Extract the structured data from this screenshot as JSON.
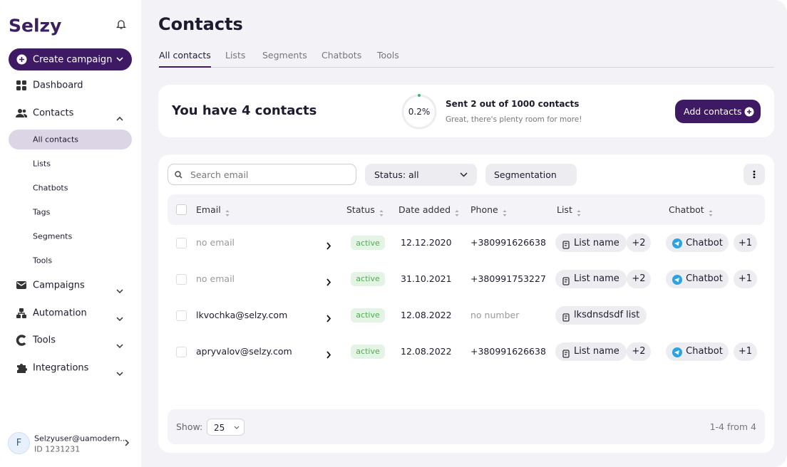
{
  "sidebar": {
    "logo": "Selzy",
    "create": "Create campaign",
    "nav": [
      {
        "label": "Dashboard",
        "icon": "grid"
      },
      {
        "label": "Contacts",
        "icon": "people",
        "open": true,
        "sub": [
          "All contacts",
          "Lists",
          "Chatbots",
          "Tags",
          "Segments",
          "Tools"
        ],
        "active": 0
      },
      {
        "label": "Campaigns",
        "icon": "mail"
      },
      {
        "label": "Automation",
        "icon": "tree"
      },
      {
        "label": "Tools",
        "icon": "c"
      },
      {
        "label": "Integrations",
        "icon": "puzzle"
      }
    ],
    "user": {
      "initial": "F",
      "name": "Selzyuser@uamodern...",
      "id": "ID 1231231"
    }
  },
  "header": {
    "title": "Contacts",
    "tabs": [
      "All contacts",
      "Lists",
      "Segments",
      "Chatbots",
      "Tools"
    ],
    "active_tab": 0
  },
  "summary": {
    "title": "You have 4 contacts",
    "percent": "0.2%",
    "sent": "Sent 2 out of 1000 contacts",
    "note": "Great, there's plenty room for more!",
    "button": "Add contacts"
  },
  "toolbar": {
    "search": "Search email",
    "status": "Status: all",
    "segmentation": "Segmentation"
  },
  "table": {
    "columns": [
      "Email",
      "Status",
      "Date added",
      "Phone",
      "List",
      "Chatbot"
    ],
    "rows": [
      {
        "email": "no email",
        "email_missing": true,
        "status": "active",
        "date": "12.12.2020",
        "phone": "+380991626638",
        "list": "List name",
        "list_more": "+2",
        "chatbot": "Chatbot",
        "chatbot_more": "+1"
      },
      {
        "email": "no email",
        "email_missing": true,
        "status": "active",
        "date": "31.10.2021",
        "phone": "+380991753227",
        "list": "List name",
        "list_more": "+2",
        "chatbot": "Chatbot",
        "chatbot_more": "+1"
      },
      {
        "email": "lkvochka@selzy.com",
        "status": "active",
        "date": "12.08.2022",
        "phone": "no number",
        "phone_missing": true,
        "list": "lksdnsdsdf list"
      },
      {
        "email": "apryvalov@selzy.com",
        "status": "active",
        "date": "12.08.2022",
        "phone": "+380991626638",
        "list": "List name",
        "list_more": "+2",
        "chatbot": "Chatbot",
        "chatbot_more": "+1"
      }
    ]
  },
  "footer": {
    "show": "Show:",
    "per_page": "25",
    "range": "1-4 from 4"
  }
}
